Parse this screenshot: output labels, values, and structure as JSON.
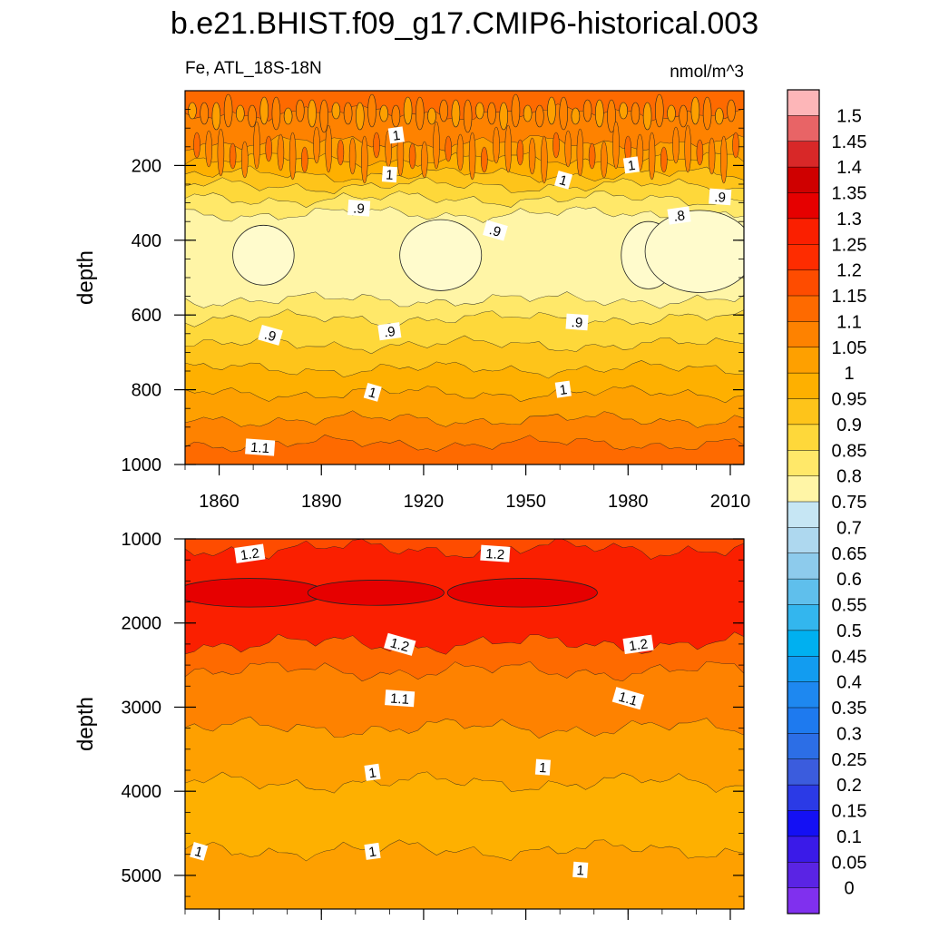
{
  "chart_data": {
    "type": "heatmap",
    "title": "b.e21.BHIST.f09_g17.CMIP6-historical.003",
    "subtitle_left": "Fe, ATL_18S-18N",
    "subtitle_right": "nmol/m^3",
    "colorbar": {
      "labels": [
        "1.5",
        "1.45",
        "1.4",
        "1.35",
        "1.3",
        "1.25",
        "1.2",
        "1.15",
        "1.1",
        "1.05",
        "1",
        "0.95",
        "0.9",
        "0.85",
        "0.8",
        "0.75",
        "0.7",
        "0.65",
        "0.6",
        "0.55",
        "0.5",
        "0.45",
        "0.4",
        "0.35",
        "0.3",
        "0.25",
        "0.2",
        "0.15",
        "0.1",
        "0.05",
        "0"
      ],
      "colors": [
        "#fdb6b8",
        "#e86466",
        "#d82828",
        "#cf0000",
        "#e60000",
        "#fa1f00",
        "#fe2c00",
        "#fe4c00",
        "#fe6a00",
        "#fe8200",
        "#fea000",
        "#feb000",
        "#fec41a",
        "#fed83a",
        "#ffe869",
        "#fff5a6",
        "#c6e6f4",
        "#aed8ef",
        "#8dcbec",
        "#5fbfec",
        "#33b6ee",
        "#00b0f0",
        "#129cf0",
        "#1e88f0",
        "#1e7aef",
        "#2c6ee6",
        "#3b5cdd",
        "#2b3ae6",
        "#1410f4",
        "#3a1ae8",
        "#5a24e4",
        "#8030ee"
      ]
    },
    "panels": [
      {
        "ylabel": "depth",
        "xlim": [
          1850,
          2014
        ],
        "ylim": [
          1000,
          0
        ],
        "xticks": [
          "1860",
          "1890",
          "1920",
          "1950",
          "1980",
          "2010"
        ],
        "xtick_values": [
          1860,
          1890,
          1920,
          1950,
          1980,
          2010
        ],
        "yticks": [
          "200",
          "400",
          "600",
          "800",
          "1000"
        ],
        "ytick_values": [
          200,
          400,
          600,
          800,
          1000
        ],
        "contour_labels": [
          {
            "text": "1",
            "x": 1912,
            "y": 120
          },
          {
            "text": "1",
            "x": 1910,
            "y": 225
          },
          {
            "text": "1",
            "x": 1961,
            "y": 240
          },
          {
            "text": "1",
            "x": 1981,
            "y": 200
          },
          {
            "text": ".9",
            "x": 1901,
            "y": 315
          },
          {
            "text": ".9",
            "x": 1941,
            "y": 375
          },
          {
            "text": ".8",
            "x": 1995,
            "y": 335
          },
          {
            "text": ".9",
            "x": 2007,
            "y": 285
          },
          {
            "text": ".9",
            "x": 1875,
            "y": 655
          },
          {
            "text": ".9",
            "x": 1910,
            "y": 645
          },
          {
            "text": ".9",
            "x": 1965,
            "y": 620
          },
          {
            "text": "1",
            "x": 1905,
            "y": 808
          },
          {
            "text": "1",
            "x": 1961,
            "y": 800
          },
          {
            "text": "1.1",
            "x": 1872,
            "y": 955
          }
        ],
        "bands": [
          {
            "value": 1.2,
            "color": "#fe6a00",
            "depth": 60
          },
          {
            "value": 1.1,
            "color": "#fe8200",
            "depth": 140
          },
          {
            "value": 1.05,
            "color": "#fea000",
            "depth": 185
          },
          {
            "value": 1.0,
            "color": "#feb000",
            "depth": 225
          },
          {
            "value": 0.95,
            "color": "#fec41a",
            "depth": 255
          },
          {
            "value": 0.9,
            "color": "#fed83a",
            "depth": 290
          },
          {
            "value": 0.85,
            "color": "#ffe869",
            "depth": 330
          },
          {
            "value": 0.8,
            "color": "#fff5a6",
            "depth": 560
          },
          {
            "value": 0.85,
            "color": "#ffe869",
            "depth": 610
          },
          {
            "value": 0.9,
            "color": "#fed83a",
            "depth": 680
          },
          {
            "value": 0.95,
            "color": "#fec41a",
            "depth": 745
          },
          {
            "value": 1.0,
            "color": "#feb000",
            "depth": 810
          },
          {
            "value": 1.05,
            "color": "#fea000",
            "depth": 880
          },
          {
            "value": 1.1,
            "color": "#fe8200",
            "depth": 945
          },
          {
            "value": 1.15,
            "color": "#fe6a00",
            "depth": 1000
          }
        ]
      },
      {
        "ylabel": "depth",
        "xlim": [
          1850,
          2014
        ],
        "ylim": [
          5400,
          1000
        ],
        "xticks": [
          "1860",
          "1890",
          "1920",
          "1950",
          "1980",
          "2010"
        ],
        "xtick_values": [
          1860,
          1890,
          1920,
          1950,
          1980,
          2010
        ],
        "yticks": [
          "1000",
          "2000",
          "3000",
          "4000",
          "5000"
        ],
        "ytick_values": [
          1000,
          2000,
          3000,
          4000,
          5000
        ],
        "contour_labels": [
          {
            "text": "1.2",
            "x": 1869,
            "y": 1180
          },
          {
            "text": "1.2",
            "x": 1941,
            "y": 1180
          },
          {
            "text": "1.2",
            "x": 1913,
            "y": 2260
          },
          {
            "text": "1.2",
            "x": 1983,
            "y": 2260
          },
          {
            "text": "1.1",
            "x": 1913,
            "y": 2900
          },
          {
            "text": "1.1",
            "x": 1980,
            "y": 2900
          },
          {
            "text": "1",
            "x": 1905,
            "y": 3780
          },
          {
            "text": "1",
            "x": 1955,
            "y": 3720
          },
          {
            "text": "1",
            "x": 1854,
            "y": 4720
          },
          {
            "text": "1",
            "x": 1905,
            "y": 4720
          },
          {
            "text": "1",
            "x": 1966,
            "y": 4940
          }
        ],
        "bands": [
          {
            "value": 1.2,
            "color": "#fe4c00",
            "depth": 1120
          },
          {
            "value": 1.25,
            "color": "#fa1f00",
            "depth": 2250
          },
          {
            "value": 1.15,
            "color": "#fe6a00",
            "depth": 2570
          },
          {
            "value": 1.1,
            "color": "#fe8200",
            "depth": 3250
          },
          {
            "value": 1.05,
            "color": "#fea000",
            "depth": 3900
          },
          {
            "value": 1.0,
            "color": "#feb000",
            "depth": 4700
          },
          {
            "value": 0.95,
            "color": "#fea000",
            "depth": 5400
          }
        ]
      }
    ]
  }
}
